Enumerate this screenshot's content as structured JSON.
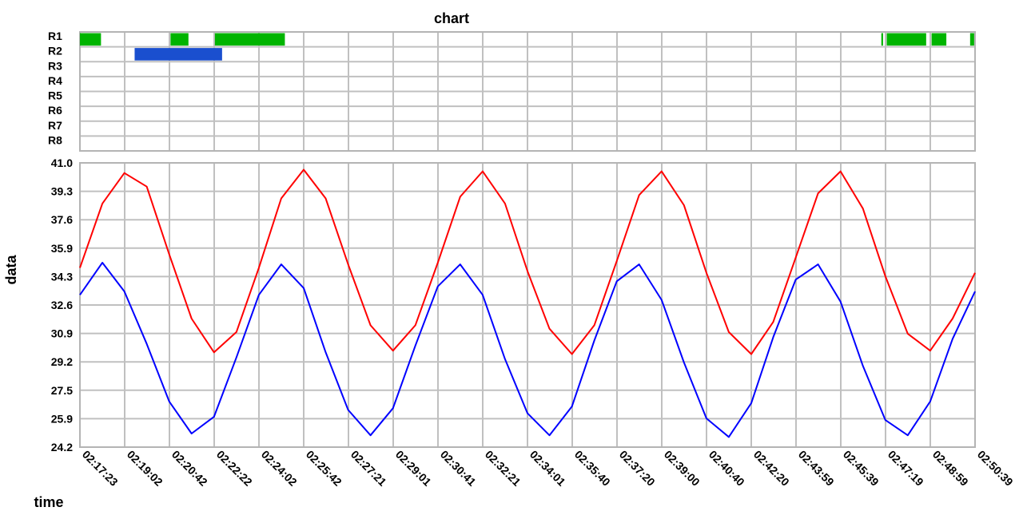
{
  "chart_data": {
    "type": "line",
    "title": "chart",
    "xlabel": "time",
    "ylabel": "data",
    "x_ticks": [
      "02:17:23",
      "02:19:02",
      "02:20:42",
      "02:22:22",
      "02:24:02",
      "02:25:42",
      "02:27:21",
      "02:29:01",
      "02:30:41",
      "02:32:21",
      "02:34:01",
      "02:35:40",
      "02:37:20",
      "02:39:00",
      "02:40:40",
      "02:42:20",
      "02:43:59",
      "02:45:39",
      "02:47:19",
      "02:48:59",
      "02:50:39"
    ],
    "y_ticks": [
      "41.0",
      "39.3",
      "37.6",
      "35.9",
      "34.3",
      "32.6",
      "30.9",
      "29.2",
      "27.5",
      "25.9",
      "24.2"
    ],
    "ylim": [
      24.2,
      41.0
    ],
    "xlim": [
      "02:17:23",
      "02:50:39"
    ],
    "grid": true,
    "series": [
      {
        "color": "#ff0000",
        "x": [
          "02:17:23",
          "02:18:13",
          "02:19:02",
          "02:19:52",
          "02:20:42",
          "02:21:32",
          "02:22:22",
          "02:23:12",
          "02:24:02",
          "02:24:52",
          "02:25:42",
          "02:26:31",
          "02:27:21",
          "02:28:11",
          "02:29:01",
          "02:29:51",
          "02:30:41",
          "02:31:31",
          "02:32:21",
          "02:33:11",
          "02:34:01",
          "02:34:50",
          "02:35:40",
          "02:36:30",
          "02:37:20",
          "02:38:10",
          "02:39:00",
          "02:39:50",
          "02:40:40",
          "02:41:30",
          "02:42:20",
          "02:43:09",
          "02:43:59",
          "02:44:49",
          "02:45:39",
          "02:46:29",
          "02:47:19",
          "02:48:09",
          "02:48:59",
          "02:49:49",
          "02:50:39"
        ],
        "values": [
          34.8,
          38.6,
          40.4,
          39.6,
          35.6,
          31.8,
          29.8,
          31.0,
          34.8,
          38.9,
          40.6,
          38.9,
          35.0,
          31.4,
          29.9,
          31.4,
          35.1,
          39.0,
          40.5,
          38.6,
          34.6,
          31.2,
          29.7,
          31.4,
          35.2,
          39.1,
          40.5,
          38.5,
          34.5,
          31.0,
          29.7,
          31.6,
          35.4,
          39.2,
          40.5,
          38.3,
          34.3,
          30.9,
          29.9,
          31.8,
          34.5
        ]
      },
      {
        "color": "#0000ff",
        "x": [
          "02:17:23",
          "02:18:13",
          "02:19:02",
          "02:19:52",
          "02:20:42",
          "02:21:32",
          "02:22:22",
          "02:23:12",
          "02:24:02",
          "02:24:52",
          "02:25:42",
          "02:26:31",
          "02:27:21",
          "02:28:11",
          "02:29:01",
          "02:29:51",
          "02:30:41",
          "02:31:31",
          "02:32:21",
          "02:33:11",
          "02:34:01",
          "02:34:50",
          "02:35:40",
          "02:36:30",
          "02:37:20",
          "02:38:10",
          "02:39:00",
          "02:39:50",
          "02:40:40",
          "02:41:30",
          "02:42:20",
          "02:43:09",
          "02:43:59",
          "02:44:49",
          "02:45:39",
          "02:46:29",
          "02:47:19",
          "02:48:09",
          "02:48:59",
          "02:49:49",
          "02:50:39"
        ],
        "values": [
          33.2,
          35.1,
          33.4,
          30.3,
          26.9,
          25.0,
          26.0,
          29.5,
          33.2,
          35.0,
          33.6,
          29.8,
          26.4,
          24.9,
          26.5,
          30.2,
          33.7,
          35.0,
          33.2,
          29.4,
          26.2,
          24.9,
          26.6,
          30.5,
          34.0,
          35.0,
          32.9,
          29.2,
          25.9,
          24.8,
          26.8,
          30.7,
          34.1,
          35.0,
          32.8,
          29.0,
          25.8,
          24.9,
          26.9,
          30.6,
          33.4
        ]
      }
    ],
    "timeline": {
      "rows": [
        "R1",
        "R2",
        "R3",
        "R4",
        "R5",
        "R6",
        "R7",
        "R8"
      ],
      "bars": [
        {
          "row": "R1",
          "start": "02:17:23",
          "end": "02:18:10",
          "color": "#00b400"
        },
        {
          "row": "R1",
          "start": "02:20:45",
          "end": "02:21:25",
          "color": "#00b400"
        },
        {
          "row": "R1",
          "start": "02:22:24",
          "end": "02:25:00",
          "color": "#00b400"
        },
        {
          "row": "R2",
          "start": "02:19:25",
          "end": "02:22:40",
          "color": "#1a4fcf"
        },
        {
          "row": "R1",
          "start": "02:47:10",
          "end": "02:47:14",
          "color": "#00b400"
        },
        {
          "row": "R1",
          "start": "02:47:22",
          "end": "02:48:50",
          "color": "#00b400"
        },
        {
          "row": "R1",
          "start": "02:49:02",
          "end": "02:49:35",
          "color": "#00b400"
        },
        {
          "row": "R1",
          "start": "02:50:28",
          "end": "02:50:37",
          "color": "#00b400"
        }
      ]
    }
  }
}
